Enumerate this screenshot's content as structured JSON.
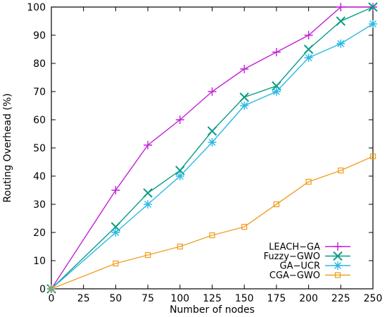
{
  "chart_data": {
    "type": "line",
    "title": "",
    "xlabel": "Number of nodes",
    "ylabel": "Routing Overhead (%)",
    "xlim": [
      0,
      250
    ],
    "ylim": [
      0,
      100
    ],
    "xticks": [
      0,
      25,
      50,
      75,
      100,
      125,
      150,
      175,
      200,
      225,
      250
    ],
    "yticks": [
      0,
      10,
      20,
      30,
      40,
      50,
      60,
      70,
      80,
      90,
      100
    ],
    "grid": false,
    "legend_position": "bottom-right",
    "x": [
      0,
      50,
      75,
      100,
      125,
      150,
      175,
      200,
      225,
      250
    ],
    "series": [
      {
        "name": "LEACH−GA",
        "marker": "plus",
        "color": "#c41fd8",
        "values": [
          0,
          35,
          51,
          60,
          70,
          78,
          84,
          90,
          100,
          100
        ]
      },
      {
        "name": "Fuzzy−GWO",
        "marker": "cross",
        "color": "#0a9e84",
        "values": [
          0,
          22,
          34,
          42,
          56,
          68,
          72,
          85,
          95,
          100
        ]
      },
      {
        "name": "GA−UCR",
        "marker": "star",
        "color": "#2cb8e6",
        "values": [
          0,
          20,
          30,
          40,
          52,
          65,
          70,
          82,
          87,
          94
        ]
      },
      {
        "name": "CGA−GWO",
        "marker": "square",
        "color": "#f0a028",
        "values": [
          0,
          9,
          12,
          15,
          19,
          22,
          30,
          38,
          42,
          47
        ]
      }
    ]
  }
}
